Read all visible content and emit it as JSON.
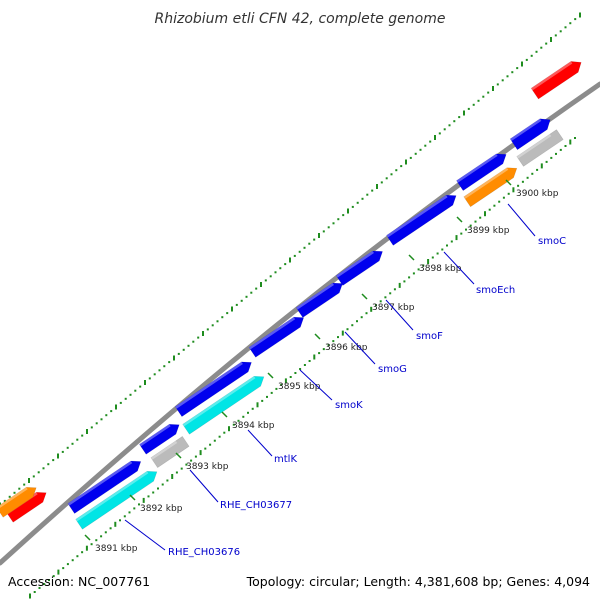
{
  "title": "Rhizobium etli CFN 42, complete genome",
  "colors": {
    "backbone": "#8c8c8c",
    "dots": "#1e8c1e",
    "label_line": "#0000cc",
    "cds": "#0000ee",
    "rna": "#ff0000",
    "other": "#ff8c00",
    "highlight": "#00e5e5",
    "pseudo": "#bbbbbb"
  },
  "ticks": [
    {
      "label": "3891 kbp"
    },
    {
      "label": "3892 kbp"
    },
    {
      "label": "3893 kbp"
    },
    {
      "label": "3894 kbp"
    },
    {
      "label": "3895 kbp"
    },
    {
      "label": "3896 kbp"
    },
    {
      "label": "3897 kbp"
    },
    {
      "label": "3898 kbp"
    },
    {
      "label": "3899 kbp"
    },
    {
      "label": "3900 kbp"
    }
  ],
  "gene_labels": [
    {
      "text": "RHE_CH03676"
    },
    {
      "text": "RHE_CH03677"
    },
    {
      "text": "mtlK"
    },
    {
      "text": "smoK"
    },
    {
      "text": "smoG"
    },
    {
      "text": "smoF"
    },
    {
      "text": "smoEch"
    },
    {
      "text": "smoC"
    }
  ],
  "footer": {
    "accession": "Accession: NC_007761",
    "info": "Topology: circular; Length: 4,381,608 bp; Genes: 4,094"
  }
}
